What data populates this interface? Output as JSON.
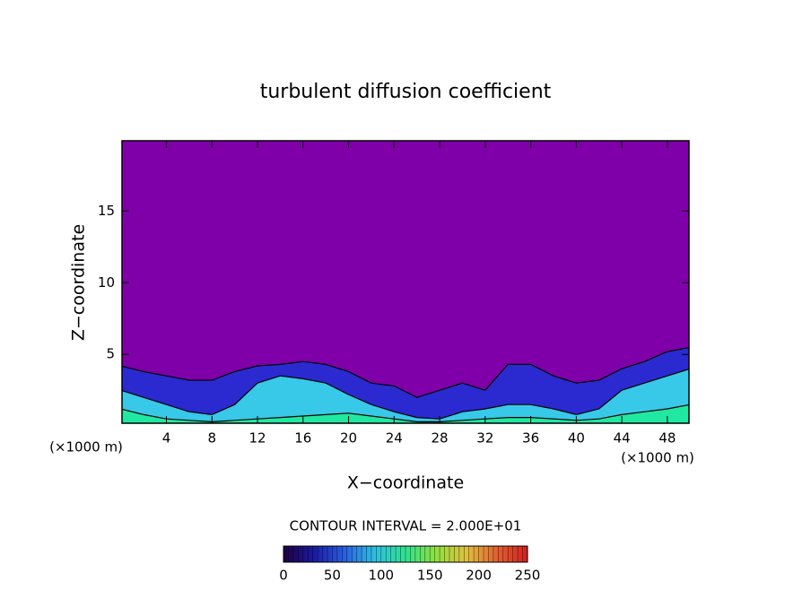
{
  "chart_data": {
    "type": "contour",
    "title": "turbulent diffusion coefficient",
    "x_label": "X−coordinate",
    "y_label": "Z−coordinate",
    "x_unit": "(×1000 m)",
    "x_unit_right": "(×1000 m)",
    "note": "CONTOUR INTERVAL = 2.000E+01",
    "background_color": "#7f00a8",
    "xlim": [
      0.1,
      49.9
    ],
    "ylim": [
      0.2,
      19.9
    ],
    "xticks": [
      4,
      8,
      12,
      16,
      20,
      24,
      28,
      32,
      36,
      40,
      44,
      48
    ],
    "yticks": [
      5,
      10,
      15
    ],
    "x": [
      0,
      2,
      4,
      6,
      8,
      10,
      12,
      14,
      16,
      18,
      20,
      22,
      24,
      26,
      28,
      30,
      32,
      34,
      36,
      38,
      40,
      42,
      44,
      46,
      48,
      50
    ],
    "layers": [
      {
        "color": "#2a2ad0",
        "values": [
          4.2,
          3.8,
          3.5,
          3.2,
          3.2,
          3.8,
          4.2,
          4.3,
          4.5,
          4.3,
          3.8,
          3.0,
          2.8,
          2.0,
          2.5,
          3.0,
          2.5,
          4.3,
          4.3,
          3.5,
          3.0,
          3.2,
          4.0,
          4.5,
          5.2,
          5.5
        ]
      },
      {
        "color": "#38c8e8",
        "values": [
          2.5,
          2.0,
          1.5,
          1.0,
          0.8,
          1.5,
          3.0,
          3.5,
          3.3,
          3.0,
          2.2,
          1.5,
          1.0,
          0.6,
          0.5,
          1.0,
          1.2,
          1.5,
          1.5,
          1.2,
          0.8,
          1.2,
          2.5,
          3.0,
          3.5,
          4.0
        ]
      },
      {
        "color": "#20e8a0",
        "values": [
          1.2,
          0.8,
          0.5,
          0.4,
          0.3,
          0.4,
          0.5,
          0.6,
          0.7,
          0.8,
          0.9,
          0.7,
          0.5,
          0.3,
          0.3,
          0.4,
          0.5,
          0.6,
          0.6,
          0.5,
          0.4,
          0.5,
          0.8,
          1.0,
          1.2,
          1.5
        ]
      }
    ],
    "colorbar": {
      "lim": [
        0,
        250
      ],
      "ticks": [
        0,
        50,
        100,
        150,
        200,
        250
      ],
      "colors": [
        "#200040",
        "#1a1aa0",
        "#2a60e0",
        "#30c0e0",
        "#30e090",
        "#90e040",
        "#e0c040",
        "#e06030",
        "#d02020"
      ]
    }
  }
}
